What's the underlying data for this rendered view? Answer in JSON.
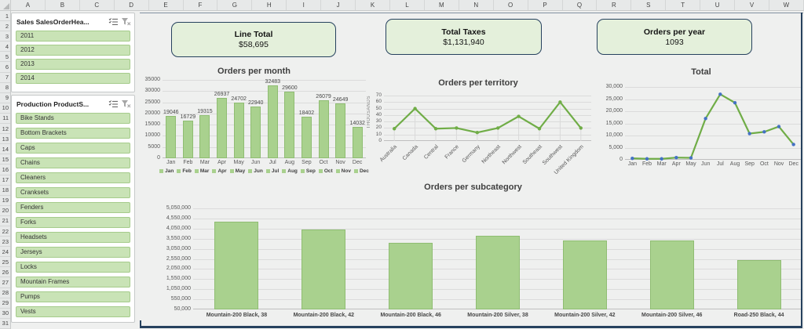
{
  "sheet": {
    "column_headers": [
      "A",
      "B",
      "C",
      "D",
      "E",
      "F",
      "G",
      "H",
      "I",
      "J",
      "K",
      "L",
      "M",
      "N",
      "O",
      "P",
      "Q",
      "R",
      "S",
      "T",
      "U",
      "V",
      "W"
    ],
    "row_headers": [
      "1",
      "2",
      "3",
      "4",
      "5",
      "6",
      "7",
      "8",
      "9",
      "10",
      "11",
      "12",
      "13",
      "14",
      "15",
      "16",
      "17",
      "18",
      "19",
      "20",
      "21",
      "22",
      "23",
      "24",
      "25",
      "26",
      "27",
      "28",
      "29",
      "30",
      "31"
    ]
  },
  "slicers": [
    {
      "id": "years",
      "title": "Sales SalesOrderHea...",
      "items": [
        "2011",
        "2012",
        "2013",
        "2014"
      ]
    },
    {
      "id": "products",
      "title": "Production ProductS...",
      "items": [
        "Bike Stands",
        "Bottom Brackets",
        "Caps",
        "Chains",
        "Cleaners",
        "Cranksets",
        "Fenders",
        "Forks",
        "Headsets",
        "Jerseys",
        "Locks",
        "Mountain Frames",
        "Pumps",
        "Vests"
      ]
    }
  ],
  "kpis": [
    {
      "label": "Line Total",
      "value": "$58,695"
    },
    {
      "label": "Total Taxes",
      "value": "$1,131,940"
    },
    {
      "label": "Orders per year",
      "value": "1093"
    }
  ],
  "chart_data": [
    {
      "id": "orders-per-month",
      "type": "bar",
      "title": "Orders per month",
      "categories": [
        "Jan",
        "Feb",
        "Mar",
        "Apr",
        "May",
        "Jun",
        "Jul",
        "Aug",
        "Sep",
        "Oct",
        "Nov",
        "Dec"
      ],
      "values": [
        19046,
        16729,
        19315,
        26937,
        24702,
        22940,
        32483,
        29600,
        18402,
        26079,
        24649,
        14032
      ],
      "ylim": [
        0,
        35000
      ],
      "ytick_labels": [
        "35000",
        "30000",
        "25000",
        "20000",
        "15000",
        "10000",
        "5000",
        "0"
      ],
      "xlabel": "",
      "ylabel": "",
      "grid": true,
      "data_labels": true,
      "legend": true,
      "legend_position": "bottom"
    },
    {
      "id": "orders-per-territory",
      "type": "line",
      "title": "Orders per territory",
      "categories": [
        "Australia",
        "Canada",
        "Central",
        "France",
        "Germany",
        "Northeast",
        "Northwest",
        "Southeast",
        "Southwest",
        "United Kingdom"
      ],
      "values": [
        19,
        50,
        19,
        20,
        13,
        20,
        38,
        19,
        60,
        20
      ],
      "ylim": [
        0,
        70
      ],
      "ytick_labels": [
        "70",
        "60",
        "50",
        "40",
        "30",
        "20",
        "10",
        "0"
      ],
      "xlabel": "",
      "ylabel": "THOUSANDS",
      "grid": false,
      "droplines": true,
      "rotated_x_labels": true,
      "marker": "green"
    },
    {
      "id": "total",
      "type": "line",
      "title": "Total",
      "categories": [
        "Jan",
        "Feb",
        "Mar",
        "Apr",
        "May",
        "Jun",
        "Jul",
        "Aug",
        "Sep",
        "Oct",
        "Nov",
        "Dec"
      ],
      "values": [
        600,
        400,
        400,
        900,
        800,
        17000,
        27000,
        23500,
        10800,
        11500,
        13700,
        6300
      ],
      "ylim": [
        0,
        30000
      ],
      "ytick_labels": [
        "30,000",
        "25,000",
        "20,000",
        "15,000",
        "10,000",
        "5,000",
        "0"
      ],
      "xlabel": "",
      "ylabel": "",
      "grid": true,
      "marker": "blue"
    },
    {
      "id": "orders-per-subcategory",
      "type": "bar",
      "title": "Orders per subcategory",
      "categories": [
        "Mountain-200 Black, 38",
        "Mountain-200 Black, 42",
        "Mountain-200 Black, 46",
        "Mountain-200 Silver, 38",
        "Mountain-200 Silver, 42",
        "Mountain-200 Silver, 46",
        "Road-250 Black, 44"
      ],
      "values": [
        4400000,
        4000000,
        3330000,
        3700000,
        3450000,
        3450000,
        2500000
      ],
      "ylim": [
        50000,
        5050000
      ],
      "ytick_labels": [
        "5,050,000",
        "4,550,000",
        "4,050,000",
        "3,550,000",
        "3,050,000",
        "2,550,000",
        "2,050,000",
        "1,550,000",
        "1,050,000",
        "550,000",
        "50,000"
      ],
      "xlabel": "",
      "ylabel": "",
      "grid": true
    }
  ],
  "icons": {
    "multiselect": "multiselect-icon",
    "clear_filter": "clear-filter-icon"
  },
  "colors": {
    "bar_fill": "#a9d18e",
    "bar_border": "#8fbd72",
    "line_green": "#70ad47",
    "marker_green": "#70ad47",
    "marker_blue": "#4472c4",
    "slicer_item_fill": "#c9e3b6",
    "slicer_item_border": "#a5cb8b",
    "kpi_fill": "#e4f0db",
    "panel_border": "#26415e",
    "gridline": "#dbdbdb",
    "axis_text": "#595959",
    "dropline": "#d9d9d9"
  }
}
